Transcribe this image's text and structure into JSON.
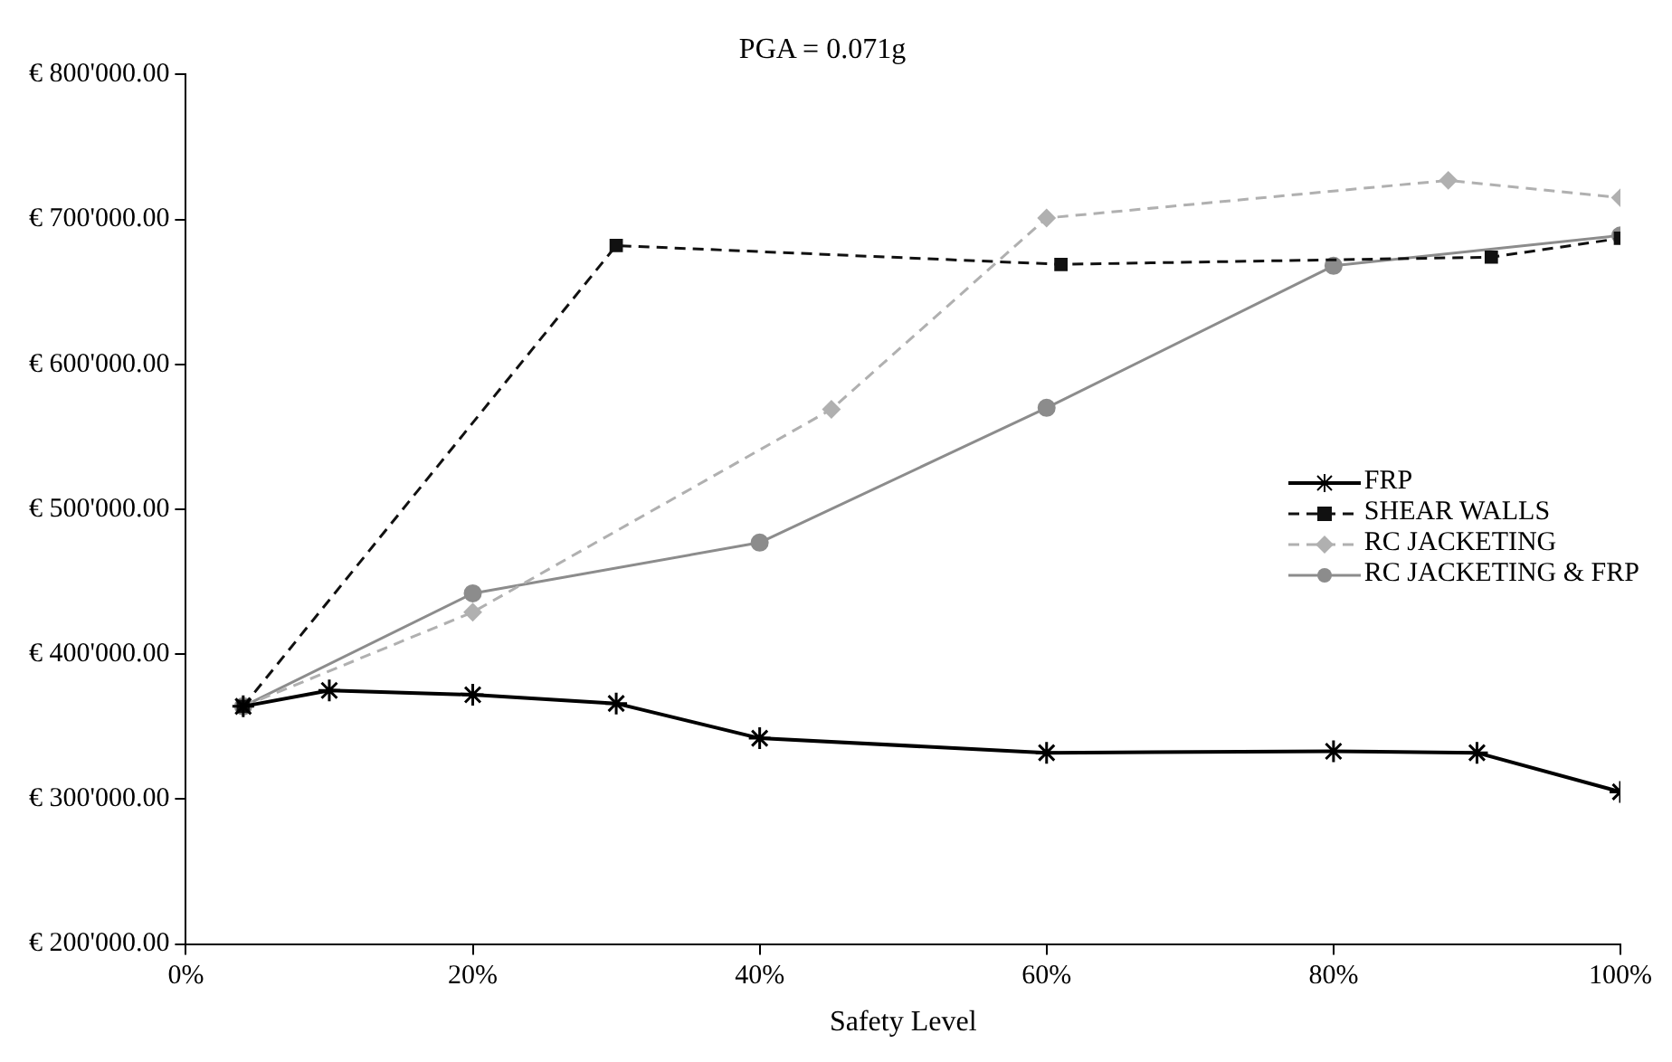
{
  "chart_data": {
    "type": "line",
    "title": "PGA = 0.071g",
    "xlabel": "Safety Level",
    "xlim": [
      0,
      100
    ],
    "xticks": [
      {
        "value": 0,
        "label": "0%"
      },
      {
        "value": 20,
        "label": "20%"
      },
      {
        "value": 40,
        "label": "40%"
      },
      {
        "value": 60,
        "label": "60%"
      },
      {
        "value": 80,
        "label": "80%"
      },
      {
        "value": 100,
        "label": "100%"
      }
    ],
    "ylim": [
      200000,
      800000
    ],
    "yticks": [
      {
        "value": 200000,
        "label": "€ 200'000.00"
      },
      {
        "value": 300000,
        "label": "€ 300'000.00"
      },
      {
        "value": 400000,
        "label": "€ 400'000.00"
      },
      {
        "value": 500000,
        "label": "€ 500'000.00"
      },
      {
        "value": 600000,
        "label": "€ 600'000.00"
      },
      {
        "value": 700000,
        "label": "€ 700'000.00"
      },
      {
        "value": 800000,
        "label": "€ 800'000.00"
      }
    ],
    "grid": false,
    "legend": "right",
    "series": [
      {
        "name": "FRP",
        "color": "#000000",
        "marker": "cross",
        "line_style": "solid",
        "x": [
          4,
          10,
          20,
          30,
          40,
          60,
          80,
          90,
          100
        ],
        "values": [
          364000,
          375000,
          372000,
          366000,
          342000,
          332000,
          333000,
          332000,
          305000
        ]
      },
      {
        "name": "SHEAR WALLS",
        "color": "#111111",
        "marker": "square",
        "line_style": "dashed",
        "x": [
          4,
          30,
          61,
          91,
          100
        ],
        "values": [
          364000,
          682000,
          669000,
          674000,
          687000
        ]
      },
      {
        "name": "RC JACKETING",
        "color": "#b0b0b0",
        "marker": "diamond",
        "line_style": "dashed",
        "x": [
          4,
          20,
          45,
          60,
          88,
          100
        ],
        "values": [
          364000,
          429000,
          569000,
          701000,
          727000,
          715000
        ]
      },
      {
        "name": "RC JACKETING & FRP",
        "color": "#8c8c8c",
        "marker": "circle",
        "line_style": "solid",
        "x": [
          4,
          20,
          40,
          60,
          80,
          100
        ],
        "values": [
          364000,
          442000,
          477000,
          570000,
          668000,
          689000
        ]
      }
    ]
  }
}
